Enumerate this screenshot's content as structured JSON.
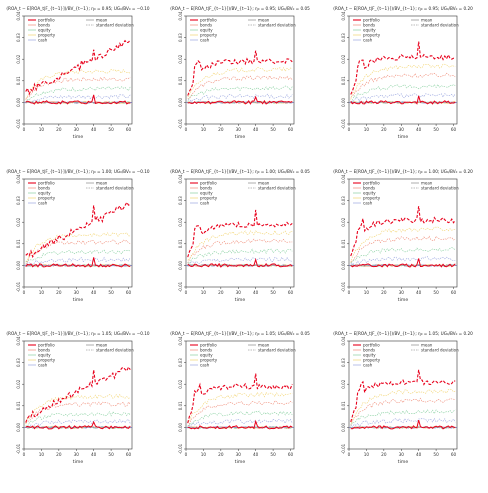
{
  "figure": {
    "axis_xlabel": "time",
    "y_ticks": [
      "0.04",
      "0.03",
      "0.02",
      "0.01",
      "0.00",
      "-0.01"
    ],
    "x_ticks": [
      "0",
      "10",
      "20",
      "30",
      "40",
      "50",
      "60"
    ]
  },
  "legend": {
    "left": [
      "portfolio",
      "bonds",
      "equity",
      "property",
      "cash"
    ],
    "right": [
      "mean",
      "standard deviation"
    ]
  },
  "colors": {
    "portfolio": "#e8001c",
    "bonds": "#f08c78",
    "equity": "#88d0a0",
    "property": "#f2d470",
    "cash": "#9aa6e0",
    "zero_line": "#7a7ab8",
    "axis": "#333333"
  },
  "chart_data": [
    {
      "type": "line",
      "title": "(ROA_t − E[ROA_t|F_{t−1}])/BV_{t−1}; η₀ = 0.95; UG₀/BV₀ = −0.10",
      "xlabel": "time",
      "xlim": [
        0,
        62
      ],
      "ylim": [
        -0.01,
        0.04
      ],
      "eta0": 0.95,
      "ug0_bv0": -0.1
    },
    {
      "type": "line",
      "title": "(ROA_t − E[ROA_t|F_{t−1}])/BV_{t−1}; η₀ = 0.95; UG₀/BV₀ = 0.05",
      "xlabel": "time",
      "xlim": [
        0,
        62
      ],
      "ylim": [
        -0.01,
        0.04
      ],
      "eta0": 0.95,
      "ug0_bv0": 0.05
    },
    {
      "type": "line",
      "title": "(ROA_t − E[ROA_t|F_{t−1}])/BV_{t−1}; η₀ = 0.95; UG₀/BV₀ = 0.20",
      "xlabel": "time",
      "xlim": [
        0,
        62
      ],
      "ylim": [
        -0.01,
        0.04
      ],
      "eta0": 0.95,
      "ug0_bv0": 0.2
    },
    {
      "type": "line",
      "title": "(ROA_t − E[ROA_t|F_{t−1}])/BV_{t−1}; η₀ = 1.00; UG₀/BV₀ = −0.10",
      "xlabel": "time",
      "xlim": [
        0,
        62
      ],
      "ylim": [
        -0.01,
        0.04
      ],
      "eta0": 1.0,
      "ug0_bv0": -0.1
    },
    {
      "type": "line",
      "title": "(ROA_t − E[ROA_t|F_{t−1}])/BV_{t−1}; η₀ = 1.00; UG₀/BV₀ = 0.05",
      "xlabel": "time",
      "xlim": [
        0,
        62
      ],
      "ylim": [
        -0.01,
        0.04
      ],
      "eta0": 1.0,
      "ug0_bv0": 0.05
    },
    {
      "type": "line",
      "title": "(ROA_t − E[ROA_t|F_{t−1}])/BV_{t−1}; η₀ = 1.00; UG₀/BV₀ = 0.20",
      "xlabel": "time",
      "xlim": [
        0,
        62
      ],
      "ylim": [
        -0.01,
        0.04
      ],
      "eta0": 1.0,
      "ug0_bv0": 0.2
    },
    {
      "type": "line",
      "title": "(ROA_t − E[ROA_t|F_{t−1}])/BV_{t−1}; η₀ = 1.05; UG₀/BV₀ = −0.10",
      "xlabel": "time",
      "xlim": [
        0,
        62
      ],
      "ylim": [
        -0.01,
        0.04
      ],
      "eta0": 1.05,
      "ug0_bv0": -0.1
    },
    {
      "type": "line",
      "title": "(ROA_t − E[ROA_t|F_{t−1}])/BV_{t−1}; η₀ = 1.05; UG₀/BV₀ = 0.05",
      "xlabel": "time",
      "xlim": [
        0,
        62
      ],
      "ylim": [
        -0.01,
        0.04
      ],
      "eta0": 1.05,
      "ug0_bv0": 0.05
    },
    {
      "type": "line",
      "title": "(ROA_t − E[ROA_t|F_{t−1}])/BV_{t−1}; η₀ = 1.05; UG₀/BV₀ = 0.20",
      "xlabel": "time",
      "xlim": [
        0,
        62
      ],
      "ylim": [
        -0.01,
        0.04
      ],
      "eta0": 1.05,
      "ug0_bv0": 0.2
    }
  ]
}
